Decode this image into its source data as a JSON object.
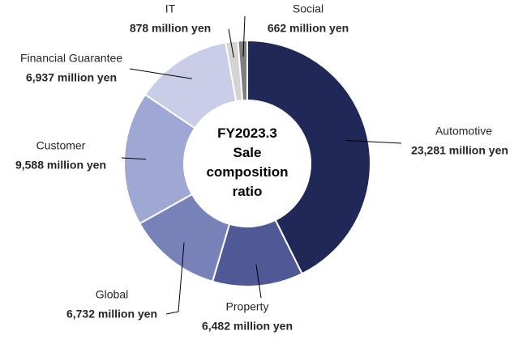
{
  "chart_data": {
    "type": "donut",
    "title": "FY2023.3 Sale composition ratio",
    "categories": [
      "Automotive",
      "Property",
      "Global",
      "Customer",
      "Financial Guarantee",
      "IT",
      "Social"
    ],
    "values": [
      23281,
      6482,
      6732,
      9588,
      6937,
      878,
      662
    ],
    "value_labels": [
      "23,281 million yen",
      "6,482 million yen",
      "6,732 million yen",
      "9,588 million yen",
      "6,937 million yen",
      "878 million yen",
      "662 million yen"
    ],
    "colors": [
      "#1f2856",
      "#4f5996",
      "#7782b9",
      "#9fa8d4",
      "#c9cde7",
      "#d4d4d4",
      "#7f7f7f"
    ]
  }
}
